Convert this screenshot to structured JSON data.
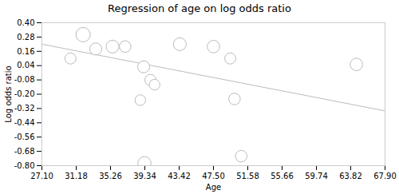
{
  "chart_data": {
    "type": "scatter",
    "title": "Regression of age on log odds ratio",
    "xlabel": "Age",
    "ylabel": "Log odds ratio",
    "x": [
      30.5,
      32.0,
      33.5,
      35.5,
      37.0,
      38.8,
      39.2,
      40.0,
      40.5,
      39.3,
      43.5,
      47.5,
      49.5,
      50.0,
      50.8,
      64.5
    ],
    "y": [
      0.1,
      0.3,
      0.18,
      0.2,
      0.2,
      -0.25,
      0.03,
      -0.08,
      -0.12,
      -0.78,
      0.22,
      0.2,
      0.1,
      -0.24,
      -0.72,
      0.05
    ],
    "sizes": [
      120,
      200,
      140,
      160,
      130,
      110,
      140,
      120,
      110,
      170,
      160,
      150,
      120,
      130,
      130,
      150
    ],
    "regression_line": {
      "x": [
        27.1,
        67.9
      ],
      "y": [
        0.22,
        -0.34
      ]
    },
    "color": "#bbbbbb",
    "xlim": [
      27.1,
      67.9
    ],
    "ylim": [
      -0.8,
      0.4
    ],
    "xticks": [
      {
        "value": 27.1,
        "label": "27.10"
      },
      31.18,
      35.26,
      39.34,
      43.42,
      {
        "value": 47.5,
        "label": "47.50"
      },
      51.58,
      55.66,
      59.74,
      63.82,
      {
        "value": 67.9,
        "label": "67.90"
      }
    ],
    "yticks": [
      {
        "value": -0.8,
        "label": "-0.80"
      },
      -0.68,
      -0.56,
      -0.44,
      -0.32,
      {
        "value": -0.2,
        "label": "-0.20"
      },
      -0.08,
      0.04,
      0.16,
      0.28,
      {
        "value": 0.4,
        "label": "0.40"
      }
    ]
  }
}
